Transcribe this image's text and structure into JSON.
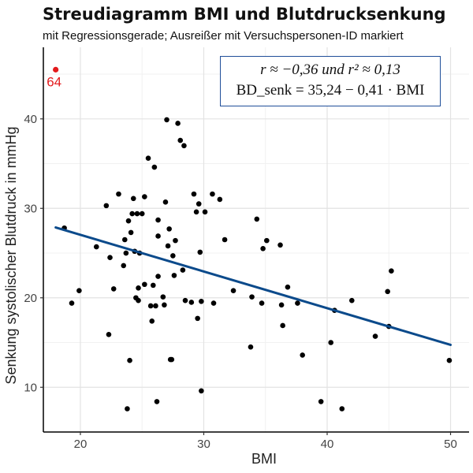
{
  "chart_data": {
    "type": "scatter",
    "title": "Streudiagramm BMI und Blutdrucksenkung",
    "subtitle": "mit Regressionsgerade; Ausreißer mit Versuchspersonen-ID markiert",
    "xlabel": "BMI",
    "ylabel": "Senkung systolischer Blutdruck in mmHg",
    "xlim": [
      17,
      51.5
    ],
    "ylim": [
      5,
      48
    ],
    "xticks": [
      20,
      30,
      40,
      50
    ],
    "yticks": [
      10,
      20,
      30,
      40
    ],
    "grid": true,
    "point_color": "#000000",
    "outlier_color": "#e31a1c",
    "line_color": "#0b4a8b",
    "annotation": {
      "line1": "r ≈ −0,36 und r² ≈ 0,13",
      "line2": "BD_senk = 35,24 − 0,41 · BMI"
    },
    "regression": {
      "intercept": 35.24,
      "slope": -0.41,
      "x_range": [
        18,
        50
      ]
    },
    "outliers": [
      {
        "id": "64",
        "x": 18.0,
        "y": 45.5
      }
    ],
    "points": [
      [
        18.7,
        27.8
      ],
      [
        19.3,
        19.4
      ],
      [
        19.9,
        20.8
      ],
      [
        21.3,
        25.7
      ],
      [
        22.1,
        30.3
      ],
      [
        22.3,
        15.9
      ],
      [
        22.4,
        24.5
      ],
      [
        22.7,
        21.0
      ],
      [
        23.1,
        31.6
      ],
      [
        23.5,
        23.6
      ],
      [
        23.6,
        26.5
      ],
      [
        23.7,
        25.0
      ],
      [
        23.8,
        7.6
      ],
      [
        23.9,
        28.6
      ],
      [
        24.0,
        13.0
      ],
      [
        24.1,
        27.3
      ],
      [
        24.2,
        29.4
      ],
      [
        24.3,
        31.1
      ],
      [
        24.4,
        25.2
      ],
      [
        24.5,
        20.0
      ],
      [
        24.6,
        29.4
      ],
      [
        24.7,
        19.7
      ],
      [
        24.7,
        21.1
      ],
      [
        24.8,
        25.0
      ],
      [
        25.0,
        29.4
      ],
      [
        25.2,
        31.3
      ],
      [
        25.2,
        21.5
      ],
      [
        25.5,
        35.6
      ],
      [
        25.7,
        19.1
      ],
      [
        25.8,
        17.4
      ],
      [
        25.9,
        21.4
      ],
      [
        26.0,
        34.6
      ],
      [
        26.1,
        19.1
      ],
      [
        26.2,
        8.4
      ],
      [
        26.3,
        22.4
      ],
      [
        26.3,
        26.9
      ],
      [
        26.3,
        28.7
      ],
      [
        26.7,
        20.1
      ],
      [
        26.8,
        19.2
      ],
      [
        26.9,
        30.7
      ],
      [
        27.0,
        39.9
      ],
      [
        27.1,
        25.8
      ],
      [
        27.2,
        27.7
      ],
      [
        27.3,
        13.1
      ],
      [
        27.4,
        13.1
      ],
      [
        27.5,
        24.7
      ],
      [
        27.6,
        22.5
      ],
      [
        27.7,
        26.4
      ],
      [
        27.9,
        39.5
      ],
      [
        28.1,
        37.6
      ],
      [
        28.3,
        23.1
      ],
      [
        28.4,
        37.0
      ],
      [
        28.5,
        19.7
      ],
      [
        29.0,
        19.5
      ],
      [
        29.2,
        31.6
      ],
      [
        29.4,
        29.6
      ],
      [
        29.5,
        17.7
      ],
      [
        29.6,
        30.5
      ],
      [
        29.7,
        25.1
      ],
      [
        29.8,
        9.6
      ],
      [
        29.8,
        19.6
      ],
      [
        30.1,
        29.6
      ],
      [
        30.7,
        31.6
      ],
      [
        30.8,
        19.4
      ],
      [
        31.3,
        31.0
      ],
      [
        31.7,
        26.5
      ],
      [
        32.4,
        20.8
      ],
      [
        33.8,
        14.5
      ],
      [
        33.9,
        20.1
      ],
      [
        34.3,
        28.8
      ],
      [
        34.7,
        19.4
      ],
      [
        34.8,
        25.5
      ],
      [
        35.1,
        26.4
      ],
      [
        36.2,
        25.9
      ],
      [
        36.3,
        19.2
      ],
      [
        36.4,
        16.9
      ],
      [
        36.8,
        21.2
      ],
      [
        37.6,
        19.4
      ],
      [
        38.0,
        13.6
      ],
      [
        39.5,
        8.4
      ],
      [
        40.3,
        15.0
      ],
      [
        40.6,
        18.6
      ],
      [
        41.2,
        7.6
      ],
      [
        42.0,
        19.7
      ],
      [
        43.9,
        15.7
      ],
      [
        44.9,
        20.7
      ],
      [
        45.0,
        16.8
      ],
      [
        45.2,
        23.0
      ],
      [
        49.9,
        13.0
      ]
    ]
  }
}
